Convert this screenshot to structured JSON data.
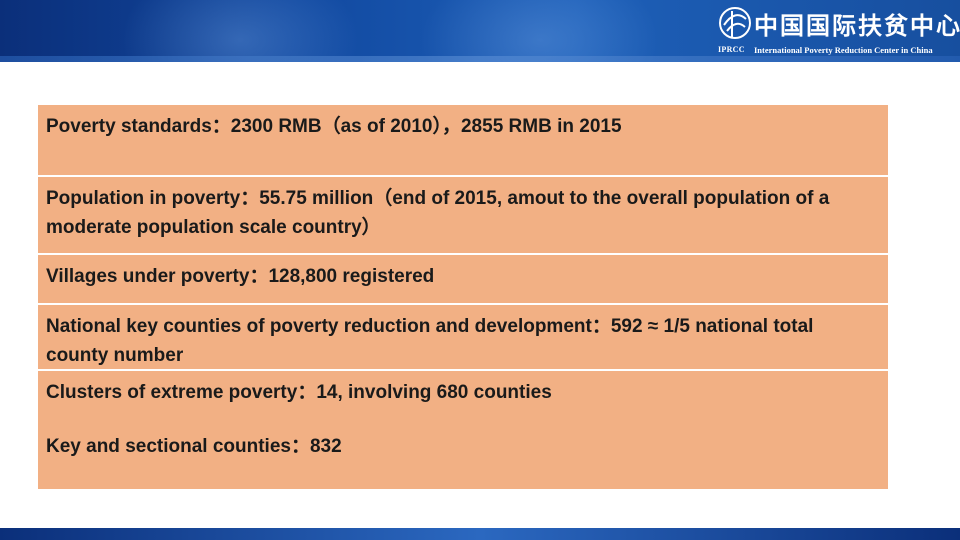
{
  "logo": {
    "chinese_name": "中国国际扶贫中心",
    "english_name": "International Poverty Reduction Center in China",
    "abbreviation": "IPRCC"
  },
  "rows": [
    "Poverty standards：2300 RMB（as of 2010），2855 RMB in 2015",
    "Population in poverty：55.75 million（end of 2015, amout to the overall population of a moderate population scale country）",
    "Villages under poverty：128,800 registered",
    "National key counties of poverty reduction and development：592 ≈ 1/5 national total county number",
    "Clusters of extreme poverty：14, involving 680 counties",
    "Key and sectional counties：832"
  ],
  "colors": {
    "header_blue": "#11489f",
    "table_fill": "#f2b084",
    "text": "#1a1a1a"
  }
}
